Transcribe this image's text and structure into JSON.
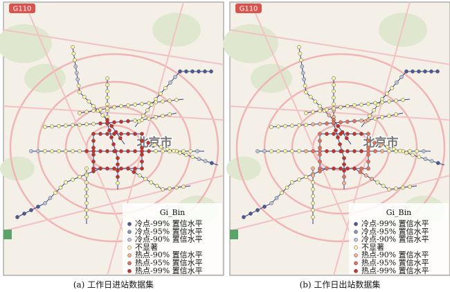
{
  "panels": [
    {
      "shield": "G110",
      "city_label": "北京市",
      "legend": {
        "title": "Gi_Bin",
        "items": [
          "冷点-99% 置信水平",
          "冷点-95% 置信水平",
          "冷点-90% 置信水平",
          "不显著",
          "热点-90% 置信水平",
          "热点-95% 置信水平",
          "热点-99% 置信水平"
        ]
      },
      "caption": "(a) 工作日进站数据集"
    },
    {
      "shield": "G110",
      "city_label": "北京市",
      "legend": {
        "title": "Gi_Bin",
        "items": [
          "冷点-99% 置信水平",
          "冷点-95% 置信水平",
          "冷点-90% 置信水平",
          "不显著",
          "热点-90% 置信水平",
          "热点-95% 置信水平",
          "热点-99% 置信水平"
        ]
      },
      "caption": "(b) 工作日出站数据集"
    }
  ]
}
